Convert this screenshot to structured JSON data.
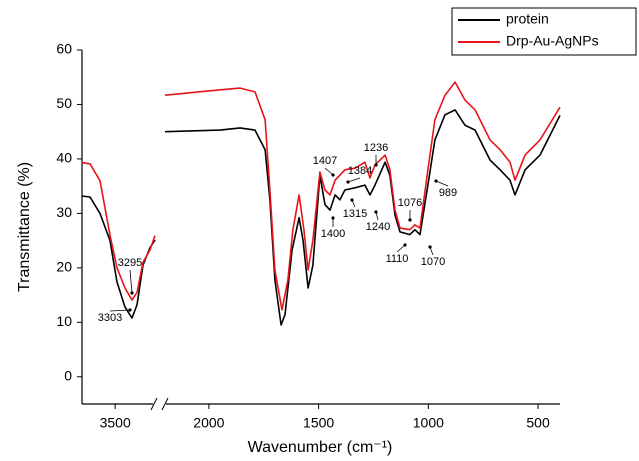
{
  "chart_data": {
    "type": "line",
    "xlabel": "Wavenumber (cm⁻¹)",
    "ylabel": "Transmittance (%)",
    "ylim": [
      -5,
      60
    ],
    "yticks": [
      0,
      10,
      20,
      30,
      40,
      50,
      60
    ],
    "x_segments": [
      {
        "xlim": [
          4000,
          2900
        ],
        "xticks": [
          3500
        ]
      },
      {
        "xlim": [
          2200,
          400
        ],
        "xticks": [
          2000,
          1500,
          1000,
          500
        ]
      }
    ],
    "series": [
      {
        "name": "protein",
        "color": "#000000",
        "x": [
          4000,
          3879,
          3729,
          3578,
          3473,
          3352,
          3247,
          3171,
          3081,
          2975,
          2900,
          2250,
          2200,
          1949,
          1858,
          1790,
          1744,
          1722,
          1699,
          1671,
          1653,
          1621,
          1589,
          1571,
          1548,
          1526,
          1494,
          1471,
          1448,
          1425,
          1403,
          1380,
          1334,
          1289,
          1266,
          1243,
          1197,
          1175,
          1152,
          1129,
          1084,
          1061,
          1038,
          1002,
          970,
          924,
          878,
          833,
          787,
          719,
          673,
          628,
          605,
          559,
          491,
          400
        ],
        "values": [
          33.2,
          33,
          30,
          25,
          17.4,
          12.8,
          10.8,
          13.2,
          20.5,
          23.7,
          25.1,
          null,
          45,
          45.3,
          45.7,
          45.3,
          41.7,
          32.5,
          17.8,
          9.5,
          11.4,
          23.3,
          29.2,
          25.1,
          16.3,
          20.5,
          37,
          31.6,
          30.6,
          33.4,
          32.5,
          34.3,
          34.7,
          35.2,
          33.4,
          35.2,
          39.4,
          37,
          29.7,
          26.6,
          26.1,
          27,
          26.1,
          35.2,
          43.5,
          48.1,
          49,
          46.2,
          45.3,
          39.8,
          38,
          36.1,
          33.4,
          38,
          40.7,
          48
        ]
      },
      {
        "name": "Drp-Au-AgNPs",
        "color": "#e8141b",
        "x": [
          4000,
          3879,
          3729,
          3578,
          3473,
          3352,
          3247,
          3171,
          3081,
          2975,
          2900,
          2250,
          2200,
          1949,
          1858,
          1790,
          1744,
          1722,
          1699,
          1667,
          1640,
          1617,
          1589,
          1567,
          1548,
          1526,
          1494,
          1471,
          1448,
          1425,
          1380,
          1334,
          1289,
          1266,
          1243,
          1197,
          1175,
          1152,
          1129,
          1084,
          1061,
          1038,
          1002,
          970,
          924,
          878,
          833,
          787,
          719,
          673,
          628,
          605,
          559,
          491,
          400
        ],
        "values": [
          39.3,
          39.1,
          36,
          26,
          20,
          16.3,
          14.1,
          15.5,
          21,
          23.3,
          25.9,
          null,
          51.7,
          52.7,
          53,
          52.3,
          47.2,
          34.3,
          19.6,
          12.3,
          17.8,
          27,
          33.4,
          27,
          19.6,
          25.1,
          37.6,
          34.3,
          33.4,
          36.1,
          38,
          38.3,
          39.4,
          36.5,
          38.9,
          40.7,
          38,
          30.6,
          27.3,
          27,
          27.9,
          27.3,
          38,
          47.2,
          51.7,
          54.1,
          50.8,
          49,
          43.5,
          41.7,
          39.4,
          36.1,
          40.7,
          43.5,
          49.5
        ]
      }
    ],
    "annotations": [
      "3295",
      "3303",
      "1407",
      "1384",
      "1236",
      "1315",
      "1400",
      "1240",
      "1076",
      "1110",
      "1070",
      "989"
    ],
    "legend": "top-right"
  }
}
